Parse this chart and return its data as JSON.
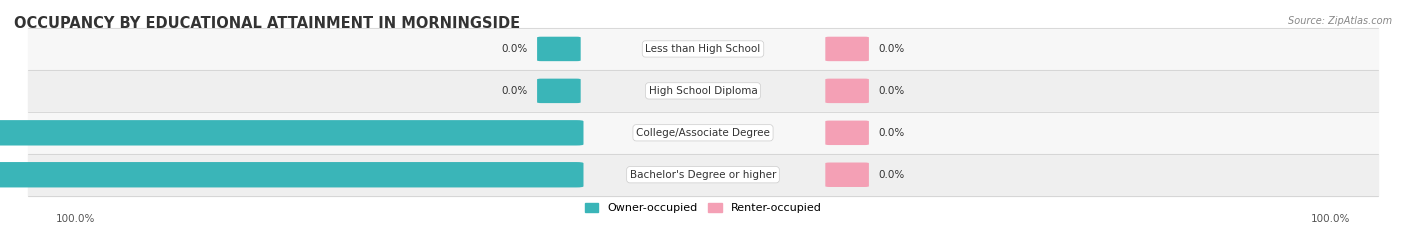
{
  "title": "OCCUPANCY BY EDUCATIONAL ATTAINMENT IN MORNINGSIDE",
  "source": "Source: ZipAtlas.com",
  "categories": [
    "Less than High School",
    "High School Diploma",
    "College/Associate Degree",
    "Bachelor's Degree or higher"
  ],
  "owner_values": [
    0.0,
    0.0,
    100.0,
    100.0
  ],
  "renter_values": [
    0.0,
    0.0,
    0.0,
    0.0
  ],
  "owner_color": "#3ab5b8",
  "renter_color": "#f4a0b5",
  "row_bg_colors": [
    "#f7f7f7",
    "#efefef"
  ],
  "axis_left_label": "100.0%",
  "axis_right_label": "100.0%",
  "title_color": "#333333",
  "figsize": [
    14.06,
    2.33
  ],
  "dpi": 100
}
